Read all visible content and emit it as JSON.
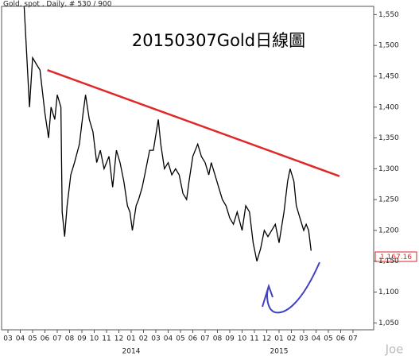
{
  "chart_data": {
    "type": "line",
    "header": "Gold, spot , Daily, # 530 / 900",
    "title": "20150307Gold日線圖",
    "watermark": "Joe",
    "last_price_label": "1,167.16",
    "series": [
      {
        "name": "Gold",
        "color": "#000000",
        "x": [
          1.3,
          1.75,
          2.0,
          2.3,
          2.6,
          3.0,
          3.3,
          3.5,
          3.8,
          4.0,
          4.3,
          4.4,
          4.6,
          4.8,
          5.1,
          5.4,
          5.8,
          6.1,
          6.3,
          6.6,
          6.9,
          7.2,
          7.5,
          7.8,
          8.2,
          8.5,
          8.8,
          9.1,
          9.4,
          9.7,
          9.9,
          10.1,
          10.4,
          10.6,
          10.9,
          11.2,
          11.5,
          11.8,
          12.2,
          12.4,
          12.7,
          13.0,
          13.3,
          13.6,
          13.9,
          14.2,
          14.5,
          14.7,
          15.0,
          15.4,
          15.7,
          16.0,
          16.3,
          16.5,
          16.8,
          17.1,
          17.4,
          17.7,
          18.0,
          18.3,
          18.6,
          19.0,
          19.3,
          19.6,
          19.9,
          20.2,
          20.5,
          20.8,
          21.1,
          21.4,
          21.7,
          22.0,
          22.4,
          22.7,
          22.9,
          23.2,
          23.4,
          23.7,
          24.0,
          24.2,
          24.4,
          24.6
        ],
        "values": [
          1570,
          1400,
          1480,
          1470,
          1460,
          1390,
          1350,
          1400,
          1380,
          1420,
          1400,
          1230,
          1190,
          1240,
          1290,
          1310,
          1340,
          1390,
          1420,
          1380,
          1360,
          1310,
          1330,
          1300,
          1320,
          1270,
          1330,
          1310,
          1280,
          1240,
          1230,
          1200,
          1240,
          1250,
          1270,
          1300,
          1330,
          1330,
          1380,
          1340,
          1300,
          1310,
          1290,
          1300,
          1290,
          1260,
          1250,
          1280,
          1320,
          1340,
          1320,
          1310,
          1290,
          1310,
          1290,
          1270,
          1250,
          1240,
          1220,
          1210,
          1230,
          1200,
          1240,
          1230,
          1180,
          1150,
          1170,
          1200,
          1190,
          1200,
          1210,
          1180,
          1230,
          1280,
          1300,
          1280,
          1240,
          1220,
          1200,
          1210,
          1200,
          1167
        ]
      }
    ],
    "trendline": {
      "x": [
        3.2,
        26.9
      ],
      "values": [
        1460,
        1288
      ],
      "color": "#e02828"
    },
    "xlim": [
      -0.645,
      29.68
    ],
    "ylim": [
      1038.8,
      1563.4
    ],
    "xticks": [
      {
        "value": 0,
        "label": "03"
      },
      {
        "value": 1,
        "label": "04"
      },
      {
        "value": 2,
        "label": "05"
      },
      {
        "value": 3,
        "label": "06"
      },
      {
        "value": 4,
        "label": "07"
      },
      {
        "value": 5,
        "label": "08"
      },
      {
        "value": 6,
        "label": "09"
      },
      {
        "value": 7,
        "label": "10"
      },
      {
        "value": 8,
        "label": "11"
      },
      {
        "value": 9,
        "label": "12"
      },
      {
        "value": 10,
        "label": "01"
      },
      {
        "value": 11,
        "label": "02"
      },
      {
        "value": 12,
        "label": "03"
      },
      {
        "value": 13,
        "label": "04"
      },
      {
        "value": 14,
        "label": "05"
      },
      {
        "value": 15,
        "label": "06"
      },
      {
        "value": 16,
        "label": "07"
      },
      {
        "value": 17,
        "label": "08"
      },
      {
        "value": 18,
        "label": "09"
      },
      {
        "value": 19,
        "label": "10"
      },
      {
        "value": 20,
        "label": "11"
      },
      {
        "value": 21,
        "label": "12"
      },
      {
        "value": 22,
        "label": "01"
      },
      {
        "value": 23,
        "label": "02"
      },
      {
        "value": 24,
        "label": "03"
      },
      {
        "value": 25,
        "label": "04"
      },
      {
        "value": 26,
        "label": "05"
      },
      {
        "value": 27,
        "label": "06"
      },
      {
        "value": 28,
        "label": "07"
      }
    ],
    "year_ticks": [
      {
        "value": 10,
        "label": "2014"
      },
      {
        "value": 22,
        "label": "2015"
      }
    ],
    "yticks": [
      {
        "value": 1050,
        "label": "1,050"
      },
      {
        "value": 1100,
        "label": "1,100"
      },
      {
        "value": 1150,
        "label": "1,150"
      },
      {
        "value": 1200,
        "label": "1,200"
      },
      {
        "value": 1250,
        "label": "1,250"
      },
      {
        "value": 1300,
        "label": "1,300"
      },
      {
        "value": 1350,
        "label": "1,350"
      },
      {
        "value": 1400,
        "label": "1,400"
      },
      {
        "value": 1450,
        "label": "1,450"
      },
      {
        "value": 1500,
        "label": "1,500"
      },
      {
        "value": 1550,
        "label": "1,550"
      }
    ],
    "grid": false
  }
}
